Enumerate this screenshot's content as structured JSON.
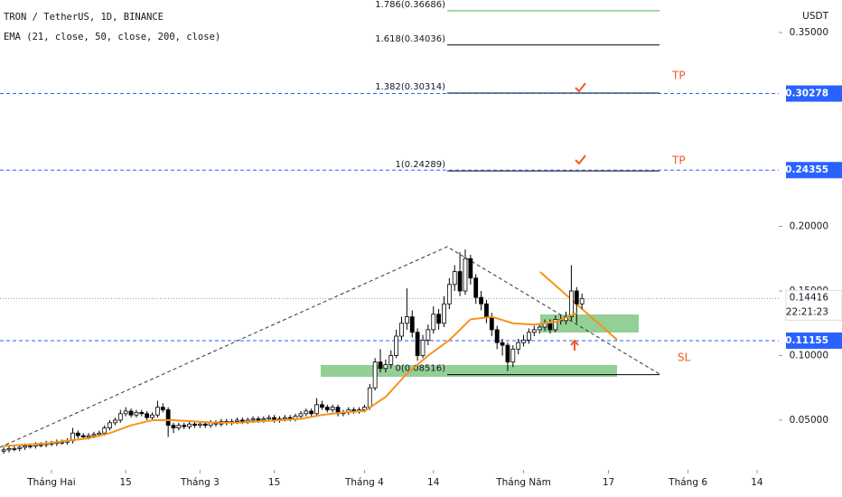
{
  "chart_data": {
    "type": "candlestick",
    "title": "TRON / TetherUS, 1D, BINANCE",
    "subtitle": "EMA (21, close, 50, close, 200, close)",
    "y_axis_label": "USDT",
    "up_color": "#ffffff",
    "down_color": "#000000",
    "border_color": "#000000",
    "x": [
      -9,
      -8,
      -7,
      -6,
      -5,
      -4,
      -3,
      -2,
      -1,
      0,
      1,
      2,
      3,
      4,
      5,
      6,
      7,
      8,
      9,
      10,
      11,
      12,
      13,
      14,
      15,
      16,
      17,
      18,
      19,
      20,
      21,
      22,
      23,
      24,
      25,
      26,
      27,
      28,
      29,
      30,
      31,
      32,
      33,
      34,
      35,
      36,
      37,
      38,
      39,
      40,
      41,
      42,
      43,
      44,
      45,
      46,
      47,
      48,
      49,
      50,
      51,
      52,
      53,
      54,
      55,
      56,
      57,
      58,
      59,
      60,
      61,
      62,
      63,
      64,
      65,
      66,
      67,
      68,
      69,
      70,
      71,
      72,
      73,
      74,
      75,
      76,
      77,
      78,
      79,
      80,
      81,
      82,
      83,
      84,
      85,
      86,
      87,
      88,
      89,
      90,
      91,
      92,
      93,
      94,
      95,
      96,
      97,
      98,
      99,
      100
    ],
    "open": [
      0.026,
      0.027,
      0.028,
      0.028,
      0.029,
      0.03,
      0.03,
      0.031,
      0.031,
      0.032,
      0.032,
      0.033,
      0.033,
      0.034,
      0.04,
      0.038,
      0.037,
      0.038,
      0.039,
      0.04,
      0.044,
      0.048,
      0.05,
      0.055,
      0.057,
      0.054,
      0.056,
      0.055,
      0.052,
      0.054,
      0.06,
      0.058,
      0.046,
      0.044,
      0.046,
      0.045,
      0.047,
      0.046,
      0.047,
      0.046,
      0.048,
      0.047,
      0.049,
      0.048,
      0.049,
      0.05,
      0.049,
      0.05,
      0.051,
      0.05,
      0.051,
      0.052,
      0.05,
      0.051,
      0.052,
      0.051,
      0.053,
      0.055,
      0.057,
      0.055,
      0.062,
      0.06,
      0.058,
      0.06,
      0.055,
      0.056,
      0.058,
      0.057,
      0.058,
      0.06,
      0.075,
      0.095,
      0.09,
      0.093,
      0.1,
      0.115,
      0.125,
      0.13,
      0.118,
      0.1,
      0.112,
      0.12,
      0.132,
      0.125,
      0.14,
      0.155,
      0.165,
      0.15,
      0.175,
      0.16,
      0.145,
      0.14,
      0.13,
      0.12,
      0.11,
      0.108,
      0.095,
      0.105,
      0.11,
      0.112,
      0.118,
      0.12,
      0.122,
      0.125,
      0.12,
      0.128,
      0.127,
      0.13,
      0.15,
      0.14
    ],
    "high": [
      0.029,
      0.03,
      0.03,
      0.031,
      0.032,
      0.032,
      0.033,
      0.033,
      0.034,
      0.034,
      0.035,
      0.035,
      0.036,
      0.044,
      0.042,
      0.04,
      0.04,
      0.041,
      0.042,
      0.046,
      0.05,
      0.052,
      0.058,
      0.06,
      0.059,
      0.058,
      0.058,
      0.057,
      0.056,
      0.065,
      0.063,
      0.06,
      0.048,
      0.048,
      0.048,
      0.049,
      0.049,
      0.049,
      0.049,
      0.05,
      0.05,
      0.051,
      0.051,
      0.051,
      0.052,
      0.052,
      0.052,
      0.053,
      0.053,
      0.053,
      0.054,
      0.054,
      0.053,
      0.054,
      0.054,
      0.055,
      0.057,
      0.059,
      0.059,
      0.067,
      0.065,
      0.062,
      0.062,
      0.062,
      0.058,
      0.06,
      0.06,
      0.06,
      0.062,
      0.078,
      0.098,
      0.105,
      0.097,
      0.104,
      0.12,
      0.13,
      0.152,
      0.135,
      0.121,
      0.116,
      0.124,
      0.138,
      0.136,
      0.146,
      0.16,
      0.17,
      0.18,
      0.182,
      0.178,
      0.163,
      0.15,
      0.143,
      0.133,
      0.123,
      0.113,
      0.11,
      0.108,
      0.113,
      0.116,
      0.121,
      0.123,
      0.125,
      0.128,
      0.128,
      0.131,
      0.131,
      0.134,
      0.17,
      0.153,
      0.148
    ],
    "low": [
      0.024,
      0.025,
      0.026,
      0.026,
      0.027,
      0.028,
      0.028,
      0.029,
      0.029,
      0.03,
      0.03,
      0.031,
      0.031,
      0.032,
      0.036,
      0.035,
      0.035,
      0.036,
      0.037,
      0.038,
      0.042,
      0.046,
      0.048,
      0.053,
      0.052,
      0.052,
      0.053,
      0.05,
      0.05,
      0.052,
      0.056,
      0.037,
      0.04,
      0.042,
      0.043,
      0.043,
      0.044,
      0.044,
      0.044,
      0.044,
      0.045,
      0.045,
      0.046,
      0.046,
      0.047,
      0.047,
      0.047,
      0.048,
      0.048,
      0.048,
      0.049,
      0.048,
      0.048,
      0.049,
      0.049,
      0.049,
      0.051,
      0.053,
      0.053,
      0.053,
      0.058,
      0.056,
      0.056,
      0.053,
      0.053,
      0.054,
      0.055,
      0.055,
      0.056,
      0.058,
      0.073,
      0.087,
      0.087,
      0.09,
      0.098,
      0.112,
      0.12,
      0.114,
      0.096,
      0.098,
      0.108,
      0.117,
      0.12,
      0.122,
      0.136,
      0.15,
      0.146,
      0.147,
      0.155,
      0.14,
      0.135,
      0.125,
      0.115,
      0.105,
      0.1,
      0.088,
      0.091,
      0.101,
      0.107,
      0.109,
      0.115,
      0.117,
      0.119,
      0.117,
      0.118,
      0.124,
      0.124,
      0.127,
      0.125,
      0.136
    ],
    "close": [
      0.027,
      0.028,
      0.028,
      0.029,
      0.03,
      0.03,
      0.031,
      0.031,
      0.032,
      0.032,
      0.033,
      0.033,
      0.034,
      0.04,
      0.038,
      0.037,
      0.038,
      0.039,
      0.04,
      0.044,
      0.048,
      0.05,
      0.055,
      0.057,
      0.054,
      0.056,
      0.055,
      0.052,
      0.054,
      0.06,
      0.058,
      0.046,
      0.044,
      0.046,
      0.045,
      0.047,
      0.046,
      0.047,
      0.046,
      0.048,
      0.047,
      0.049,
      0.048,
      0.049,
      0.05,
      0.049,
      0.05,
      0.051,
      0.05,
      0.051,
      0.052,
      0.05,
      0.051,
      0.052,
      0.051,
      0.053,
      0.055,
      0.057,
      0.055,
      0.062,
      0.06,
      0.058,
      0.06,
      0.055,
      0.056,
      0.058,
      0.057,
      0.058,
      0.06,
      0.075,
      0.095,
      0.09,
      0.093,
      0.1,
      0.115,
      0.125,
      0.13,
      0.118,
      0.1,
      0.112,
      0.12,
      0.132,
      0.125,
      0.14,
      0.155,
      0.165,
      0.15,
      0.175,
      0.16,
      0.145,
      0.14,
      0.13,
      0.12,
      0.11,
      0.108,
      0.095,
      0.105,
      0.11,
      0.112,
      0.118,
      0.12,
      0.122,
      0.125,
      0.12,
      0.128,
      0.127,
      0.13,
      0.15,
      0.14,
      0.14416
    ],
    "ema": {
      "color": "#f7931a",
      "x": [
        -9,
        -5,
        -1,
        3,
        7,
        11,
        15,
        19,
        23,
        27,
        31,
        35,
        39,
        43,
        47,
        51,
        55,
        59,
        63,
        67,
        71,
        75,
        79,
        83,
        87,
        91,
        95,
        99
      ],
      "values": [
        0.03,
        0.031,
        0.032,
        0.034,
        0.036,
        0.04,
        0.046,
        0.05,
        0.05,
        0.049,
        0.048,
        0.048,
        0.049,
        0.05,
        0.051,
        0.054,
        0.056,
        0.057,
        0.068,
        0.086,
        0.1,
        0.112,
        0.128,
        0.13,
        0.125,
        0.124,
        0.126,
        0.133
      ]
    },
    "xlim": [
      -9.7,
      137.1
    ],
    "ylim": [
      0.0115,
      0.3752
    ],
    "xticks": [
      {
        "value": 0,
        "label": "Tháng Hai"
      },
      {
        "value": 14,
        "label": "15"
      },
      {
        "value": 28,
        "label": "Tháng 3"
      },
      {
        "value": 42,
        "label": "15"
      },
      {
        "value": 59,
        "label": "Tháng 4"
      },
      {
        "value": 72,
        "label": "14"
      },
      {
        "value": 89,
        "label": "Tháng Năm"
      },
      {
        "value": 105,
        "label": "17"
      },
      {
        "value": 120,
        "label": "Tháng 6"
      },
      {
        "value": 133,
        "label": "14"
      }
    ],
    "yticks": [
      {
        "value": 0.05,
        "label": "0.05000"
      },
      {
        "value": 0.1,
        "label": "0.10000"
      },
      {
        "value": 0.15,
        "label": "0.15000"
      },
      {
        "value": 0.2,
        "label": "0.20000"
      },
      {
        "value": 0.35,
        "label": "0.35000"
      }
    ],
    "price_lines": [
      {
        "value": 0.30278,
        "color": "#2962ff"
      },
      {
        "value": 0.24355,
        "color": "#2962ff"
      },
      {
        "value": 0.11155,
        "color": "#2962ff"
      }
    ],
    "last_price": {
      "value": 0.14416,
      "countdown": "22:21:23"
    },
    "fib_levels": [
      {
        "label": "1.786(0.36686)",
        "value": 0.36686,
        "color": "#4caf50"
      },
      {
        "label": "1.618(0.34036)",
        "value": 0.34036,
        "color": "#000000"
      },
      {
        "label": "1.382(0.30314)",
        "value": 0.30314,
        "color": "#000000"
      },
      {
        "label": "1(0.24289)",
        "value": 0.24289,
        "color": "#000000"
      },
      {
        "label": "0(0.08516)",
        "value": 0.08516,
        "color": "#000000"
      }
    ],
    "annotations": [
      "TP",
      "TP",
      "SL"
    ]
  }
}
